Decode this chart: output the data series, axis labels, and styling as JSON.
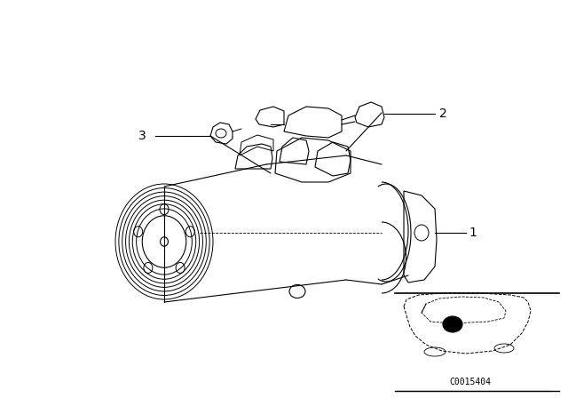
{
  "background_color": "#ffffff",
  "lc": "#000000",
  "lw": 0.8,
  "label_1": "1",
  "label_2": "2",
  "label_3": "3",
  "fs_label": 10,
  "code_text": "C0015404",
  "code_fontsize": 7
}
